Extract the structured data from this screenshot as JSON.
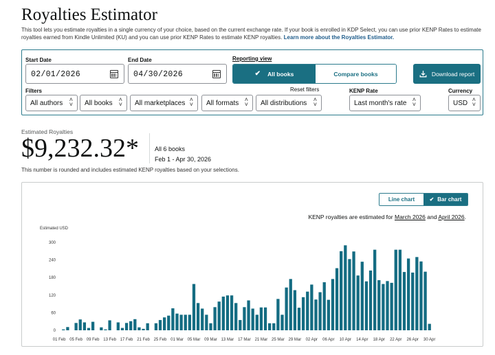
{
  "header": {
    "title": "Royalties Estimator",
    "description": "This tool lets you estimate royalties in a single currency of your choice, based on the current exchange rate. If your book is enrolled in KDP Select, you can use prior KENP Rates to estimate royalties earned from Kindle Unlimited (KU) and you can use prior KENP Rates to estimate KENP royalties.",
    "learn_more": "Learn more about the Royalties Estimator."
  },
  "controls": {
    "start_date_label": "Start Date",
    "start_date_value": "02/01/2026",
    "end_date_label": "End Date",
    "end_date_value": "04/30/2026",
    "reporting_view_label": "Reporting view",
    "all_books": "All books",
    "compare_books": "Compare books",
    "download_report": "Download report",
    "filters_label": "Filters",
    "reset_filters": "Reset filters",
    "kenp_rate_label": "KENP Rate",
    "currency_label": "Currency",
    "authors": "All authors",
    "books": "All books",
    "marketplaces": "All marketplaces",
    "formats": "All formats",
    "distributions": "All distributions",
    "kenp_rate": "Last month's rate",
    "currency": "USD"
  },
  "summary": {
    "label": "Estimated Royalties",
    "value": "$9,232.32*",
    "books": "All 6 books",
    "range": "Feb 1 - Apr 30, 2026",
    "note": "This number is rounded and includes estimated KENP royalties based on your selections."
  },
  "chart_toggle": {
    "line": "Line chart",
    "bar": "Bar chart"
  },
  "kenp_note": {
    "prefix": "KENP royalties are estimated for",
    "month1": "March 2026",
    "and": "and",
    "month2": "April 2026",
    "suffix": "."
  },
  "colors": {
    "accent": "#1a6f82",
    "bar": "#146c82"
  },
  "chart_data": {
    "type": "bar",
    "ylabel": "Estimated USD",
    "ylim": [
      0,
      300
    ],
    "yticks": [
      0,
      60,
      120,
      180,
      240,
      300
    ],
    "x_tick_labels": [
      "01 Feb",
      "05 Feb",
      "09 Feb",
      "13 Feb",
      "17 Feb",
      "21 Feb",
      "25 Feb",
      "01 Mar",
      "05 Mar",
      "09 Mar",
      "13 Mar",
      "17 Mar",
      "21 Mar",
      "25 Mar",
      "29 Mar",
      "02 Apr",
      "06 Apr",
      "10 Apr",
      "14 Apr",
      "18 Apr",
      "22 Apr",
      "26 Apr",
      "30 Apr"
    ],
    "values": [
      0,
      3,
      11,
      0,
      25,
      37,
      27,
      8,
      29,
      0,
      10,
      3,
      34,
      0,
      27,
      8,
      25,
      31,
      38,
      10,
      5,
      24,
      0,
      24,
      35,
      44,
      50,
      75,
      57,
      53,
      53,
      53,
      158,
      93,
      74,
      53,
      24,
      79,
      98,
      115,
      119,
      119,
      93,
      35,
      79,
      102,
      74,
      53,
      78,
      78,
      24,
      24,
      107,
      53,
      146,
      175,
      137,
      77,
      113,
      132,
      156,
      105,
      130,
      164,
      104,
      175,
      212,
      270,
      290,
      243,
      269,
      187,
      234,
      167,
      204,
      275,
      171,
      158,
      168,
      162,
      275,
      275,
      199,
      245,
      197,
      250,
      235,
      200,
      22
    ]
  }
}
